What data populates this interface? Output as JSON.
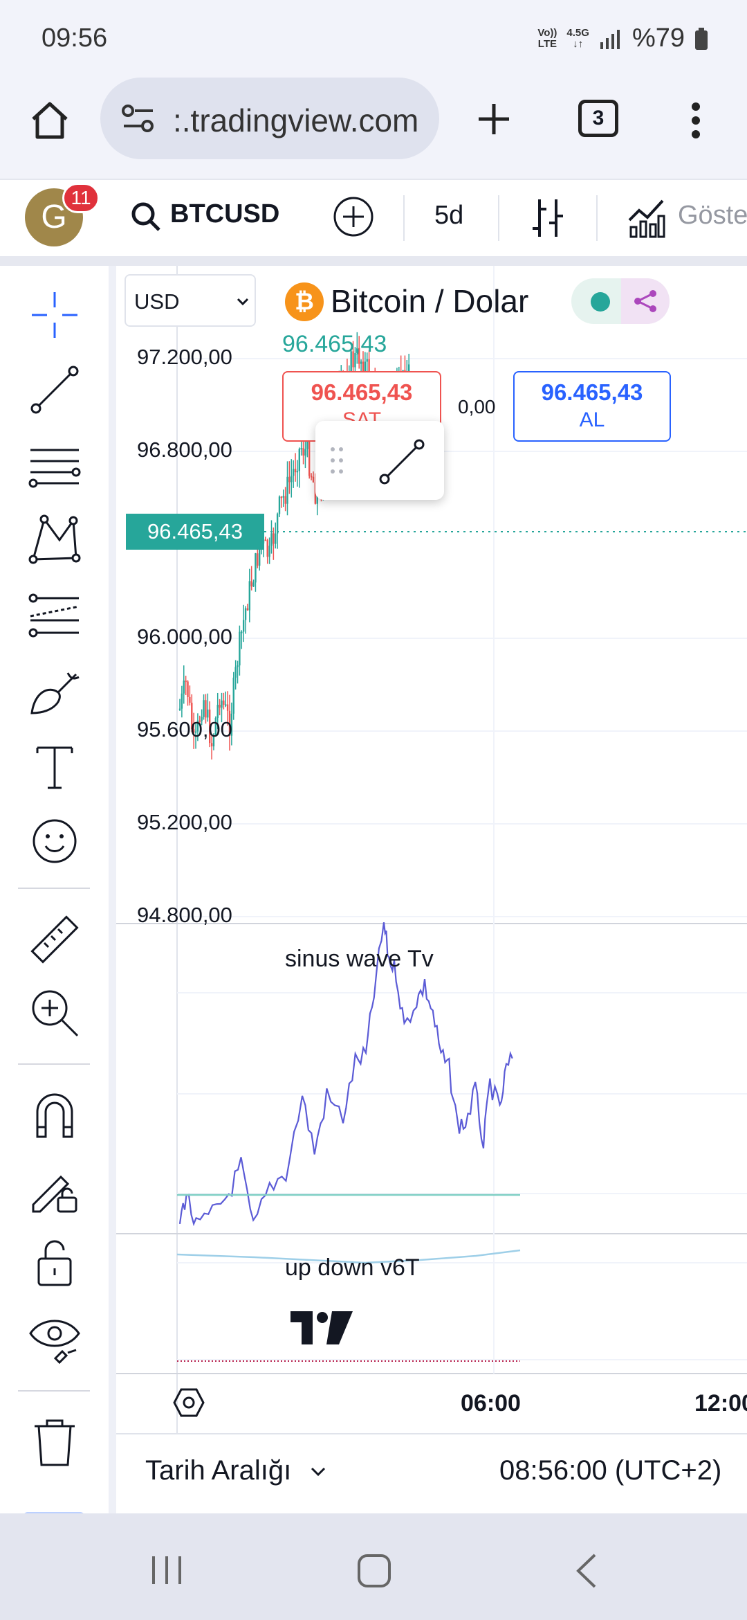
{
  "status_bar": {
    "time": "09:56",
    "network_top": "Vo))",
    "network_bottom": "LTE",
    "data_top": "4.5G",
    "data_bottom": "↓↑",
    "battery": "%79"
  },
  "browser": {
    "url": ":.tradingview.com",
    "tab_count": "3"
  },
  "header": {
    "avatar_letter": "G",
    "notification_count": "11",
    "symbol": "BTCUSD",
    "interval": "5d",
    "indicators_label": "Göste"
  },
  "chart": {
    "currency_select": "USD",
    "title": "Bitcoin / Dolar",
    "last_price": "96.465,43",
    "sell_price": "96.465,43",
    "sell_label": "SAT",
    "spread": "0,00",
    "buy_price": "96.465,43",
    "buy_label": "AL",
    "current_price_tag": "96.465,43",
    "price_axis": [
      "97.200,00",
      "96.800,00",
      "96.000,00",
      "95.600,00",
      "95.200,00",
      "94.800,00"
    ],
    "indicator1_name": "sinus wave Tv",
    "indicator2_name": "up down v6T",
    "time_axis": [
      "06:00",
      "12:00"
    ],
    "date_range_label": "Tarih Aralığı",
    "clock": "08:56:00 (UTC+2)",
    "colors": {
      "up": "#26a69a",
      "down": "#ef5350",
      "wave": "#5b5bd6",
      "accent": "#2962ff"
    }
  }
}
